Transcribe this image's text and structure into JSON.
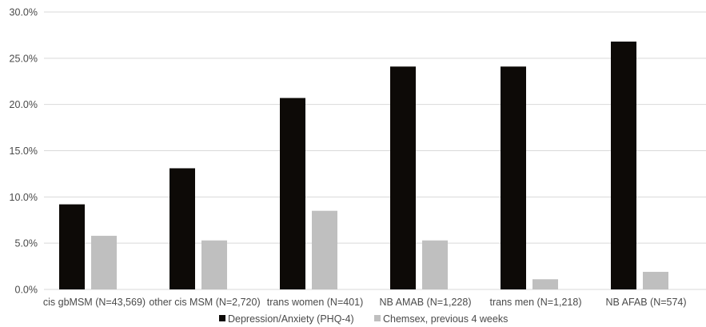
{
  "chart_data": {
    "type": "bar",
    "categories": [
      "cis gbMSM (N=43,569)",
      "other cis MSM (N=2,720)",
      "trans women (N=401)",
      "NB AMAB (N=1,228)",
      "trans men (N=1,218)",
      "NB AFAB (N=574)"
    ],
    "series": [
      {
        "name": "Depression/Anxiety (PHQ-4)",
        "color": "#0d0a07",
        "values": [
          9.2,
          13.1,
          20.7,
          24.1,
          24.1,
          26.8
        ]
      },
      {
        "name": "Chemsex, previous 4 weeks",
        "color": "#bfbfbf",
        "values": [
          5.8,
          5.3,
          8.5,
          5.3,
          1.1,
          1.9
        ]
      }
    ],
    "ylim": [
      0,
      30
    ],
    "yticks": [
      0,
      5,
      10,
      15,
      20,
      25,
      30
    ],
    "ytick_labels": [
      "0.0%",
      "5.0%",
      "10.0%",
      "15.0%",
      "20.0%",
      "25.0%",
      "30.0%"
    ],
    "grid": true,
    "legend_position": "bottom",
    "title": "",
    "xlabel": "",
    "ylabel": ""
  }
}
